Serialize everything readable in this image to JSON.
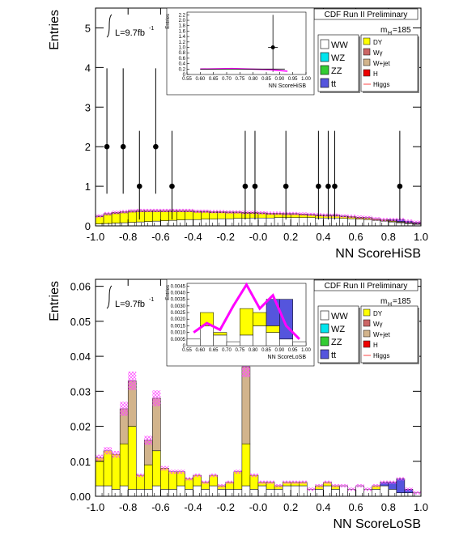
{
  "chart_data": [
    {
      "id": "top",
      "type": "bar",
      "xlabel": "NN ScoreHiSB",
      "ylabel": "Entries",
      "xlim": [
        -1.0,
        1.0
      ],
      "ylim": [
        0,
        5.5
      ],
      "xticks": [
        "-1.0",
        "-0.8",
        "-0.6",
        "-0.4",
        "-0.2",
        "-0.0",
        "0.2",
        "0.4",
        "0.6",
        "0.8",
        "1.0"
      ],
      "yticks": [
        "0",
        "1",
        "2",
        "3",
        "4",
        "5"
      ],
      "luminosity": "L=9.7fb",
      "luminosity_sup": "-1",
      "run_label": "CDF Run II Preliminary",
      "mass_label": "m",
      "mass_sub": "H",
      "mass_value": "=185",
      "legend_left": [
        "WW",
        "WZ",
        "ZZ",
        "tt"
      ],
      "legend_right": [
        "DY",
        "Wγ",
        "W+jet",
        "H",
        "Higgs"
      ],
      "legend_colors": {
        "WW": "#ffffff",
        "WZ": "#00e5ee",
        "ZZ": "#33cc33",
        "tt": "#5555dd",
        "DY": "#ffff00",
        "Wγ": "#cc6666",
        "W+jet": "#d2b48c",
        "H": "#ee0000",
        "Higgs": "#ff00ff"
      },
      "data_points": {
        "x": [
          -0.93,
          -0.83,
          -0.73,
          -0.63,
          -0.53,
          -0.08,
          -0.02,
          0.17,
          0.37,
          0.43,
          0.47,
          0.87
        ],
        "y": [
          2,
          2,
          1,
          2,
          1,
          1,
          1,
          1,
          1,
          1,
          1,
          1
        ]
      },
      "stack_bins": 40,
      "stack_ww": [
        0.05,
        0.06,
        0.07,
        0.08,
        0.09,
        0.1,
        0.11,
        0.12,
        0.13,
        0.14,
        0.15,
        0.16,
        0.16,
        0.17,
        0.17,
        0.18,
        0.18,
        0.19,
        0.19,
        0.2,
        0.2,
        0.2,
        0.21,
        0.21,
        0.21,
        0.21,
        0.21,
        0.2,
        0.2,
        0.2,
        0.19,
        0.18,
        0.17,
        0.16,
        0.14,
        0.12,
        0.1,
        0.08,
        0.06,
        0.04
      ],
      "stack_dy": [
        0.18,
        0.22,
        0.24,
        0.25,
        0.26,
        0.26,
        0.25,
        0.24,
        0.23,
        0.22,
        0.21,
        0.2,
        0.19,
        0.18,
        0.17,
        0.16,
        0.15,
        0.14,
        0.13,
        0.12,
        0.11,
        0.1,
        0.09,
        0.08,
        0.08,
        0.07,
        0.06,
        0.06,
        0.05,
        0.05,
        0.04,
        0.04,
        0.03,
        0.03,
        0.02,
        0.02,
        0.02,
        0.01,
        0.01,
        0.01
      ],
      "stack_wjet": [
        0.02,
        0.03,
        0.03,
        0.03,
        0.03,
        0.03,
        0.03,
        0.03,
        0.03,
        0.03,
        0.03,
        0.03,
        0.02,
        0.02,
        0.02,
        0.02,
        0.02,
        0.02,
        0.02,
        0.02,
        0.02,
        0.02,
        0.02,
        0.02,
        0.02,
        0.02,
        0.02,
        0.02,
        0.02,
        0.02,
        0.02,
        0.02,
        0.02,
        0.02,
        0.02,
        0.02,
        0.02,
        0.02,
        0.02,
        0.02
      ],
      "stack_tt": [
        0,
        0,
        0,
        0,
        0,
        0,
        0,
        0,
        0,
        0,
        0,
        0,
        0,
        0,
        0,
        0,
        0,
        0,
        0,
        0,
        0,
        0,
        0,
        0,
        0,
        0,
        0,
        0,
        0,
        0,
        0,
        0,
        0,
        0,
        0,
        0,
        0.02,
        0.05,
        0.03,
        0.02
      ],
      "inset": {
        "xlabel": "NN ScoreHiSB",
        "ylabel": "Entries",
        "xticks": [
          "0.55",
          "0.60",
          "0.65",
          "0.70",
          "0.75",
          "0.80",
          "0.85",
          "0.90",
          "0.95",
          "1.00"
        ],
        "yticks": [
          "0",
          "0.2",
          "0.4",
          "0.6",
          "0.8",
          "1.0",
          "1.2",
          "1.4",
          "1.6",
          "1.8",
          "2.0",
          "2.2"
        ],
        "xlim": [
          0.55,
          1.0
        ],
        "ylim": [
          0,
          2.3
        ],
        "point": {
          "x": 0.875,
          "y": 1.0
        }
      }
    },
    {
      "id": "bottom",
      "type": "bar",
      "xlabel": "NN ScoreLoSB",
      "ylabel": "Entries",
      "xlim": [
        -1.0,
        1.0
      ],
      "ylim": [
        0,
        0.062
      ],
      "xticks": [
        "-1.0",
        "-0.8",
        "-0.6",
        "-0.4",
        "-0.2",
        "-0.0",
        "0.2",
        "0.4",
        "0.6",
        "0.8",
        "1.0"
      ],
      "yticks": [
        "0.00",
        "0.01",
        "0.02",
        "0.03",
        "0.04",
        "0.05",
        "0.06"
      ],
      "luminosity": "L=9.7fb",
      "luminosity_sup": "-1",
      "run_label": "CDF Run II Preliminary",
      "mass_label": "m",
      "mass_sub": "H",
      "mass_value": "=185",
      "legend_left": [
        "WW",
        "WZ",
        "ZZ",
        "tt"
      ],
      "legend_right": [
        "DY",
        "Wγ",
        "W+jet",
        "H",
        "Higgs"
      ],
      "stack_bins": 40,
      "stack_ww": [
        0.003,
        0.003,
        0.002,
        0.003,
        0.002,
        0.002,
        0.002,
        0.003,
        0.002,
        0.002,
        0.003,
        0.002,
        0.003,
        0.002,
        0.003,
        0.002,
        0.002,
        0.002,
        0.003,
        0.002,
        0.003,
        0.002,
        0.002,
        0.003,
        0.003,
        0.003,
        0.002,
        0.002,
        0.003,
        0.002,
        0.003,
        0.002,
        0.003,
        0.002,
        0.002,
        0.003,
        0.002,
        0.001,
        0.001,
        0.001
      ],
      "stack_dy": [
        0.008,
        0.01,
        0.01,
        0.012,
        0.018,
        0.004,
        0.007,
        0.01,
        0.006,
        0.005,
        0.004,
        0.003,
        0.003,
        0.002,
        0.003,
        0.001,
        0.002,
        0.005,
        0.012,
        0.004,
        0.001,
        0.002,
        0.001,
        0.001,
        0.001,
        0.001,
        0.0,
        0.001,
        0.001,
        0.001,
        0.0,
        0.0,
        0.0,
        0.0,
        0.001,
        0.0,
        0.0,
        0.0,
        0.0,
        0.0
      ],
      "stack_wjet": [
        0.0,
        0.0,
        0.0,
        0.01,
        0.013,
        0.0,
        0.007,
        0.015,
        0.0,
        0.0,
        0.0,
        0.0,
        0.0,
        0.0,
        0.0,
        0.0,
        0.0,
        0.0,
        0.022,
        0.0,
        0.0,
        0.0,
        0.0,
        0.0,
        0.0,
        0.0,
        0.0,
        0.0,
        0.0,
        0.0,
        0.0,
        0.0,
        0.0,
        0.0,
        0.0,
        0.0,
        0.0,
        0.0,
        0.0,
        0.0
      ],
      "stack_tt": [
        0,
        0,
        0,
        0,
        0,
        0,
        0,
        0,
        0,
        0,
        0,
        0,
        0,
        0,
        0,
        0,
        0,
        0,
        0,
        0,
        0,
        0,
        0,
        0,
        0,
        0,
        0,
        0,
        0,
        0,
        0,
        0,
        0,
        0,
        0,
        0.001,
        0.002,
        0.004,
        0.001,
        0.0
      ],
      "inset": {
        "xlabel": "NN ScoreLoSB",
        "ylabel": "Entries",
        "xticks": [
          "0.55",
          "0.60",
          "0.65",
          "0.70",
          "0.75",
          "0.80",
          "0.85",
          "0.90",
          "0.95",
          "1.00"
        ],
        "yticks": [
          "0",
          "0.0005",
          "0.0010",
          "0.0015",
          "0.0020",
          "0.0025",
          "0.0030",
          "0.0035",
          "0.0040",
          "0.0045"
        ],
        "xlim": [
          0.55,
          1.0
        ],
        "ylim": [
          0,
          0.0047
        ],
        "stack_x": [
          0.55,
          0.6,
          0.65,
          0.7,
          0.75,
          0.8,
          0.85,
          0.9,
          0.95
        ],
        "stack_ww": [
          0.0005,
          0.0015,
          0.0008,
          0.0003,
          0.0008,
          0.0015,
          0.001,
          0.0005,
          0.0003
        ],
        "stack_dy": [
          0.0,
          0.001,
          0.0002,
          0.0,
          0.002,
          0.001,
          0.0005,
          0.0,
          0.0
        ],
        "stack_tt": [
          0.0,
          0.0,
          0.0,
          0.0,
          0.0,
          0.0,
          0.002,
          0.003,
          0.0
        ],
        "higgs_line": [
          0.001,
          0.0017,
          0.0012,
          0.003,
          0.0046,
          0.0028,
          0.0038,
          0.0015,
          0.0005
        ]
      }
    }
  ]
}
